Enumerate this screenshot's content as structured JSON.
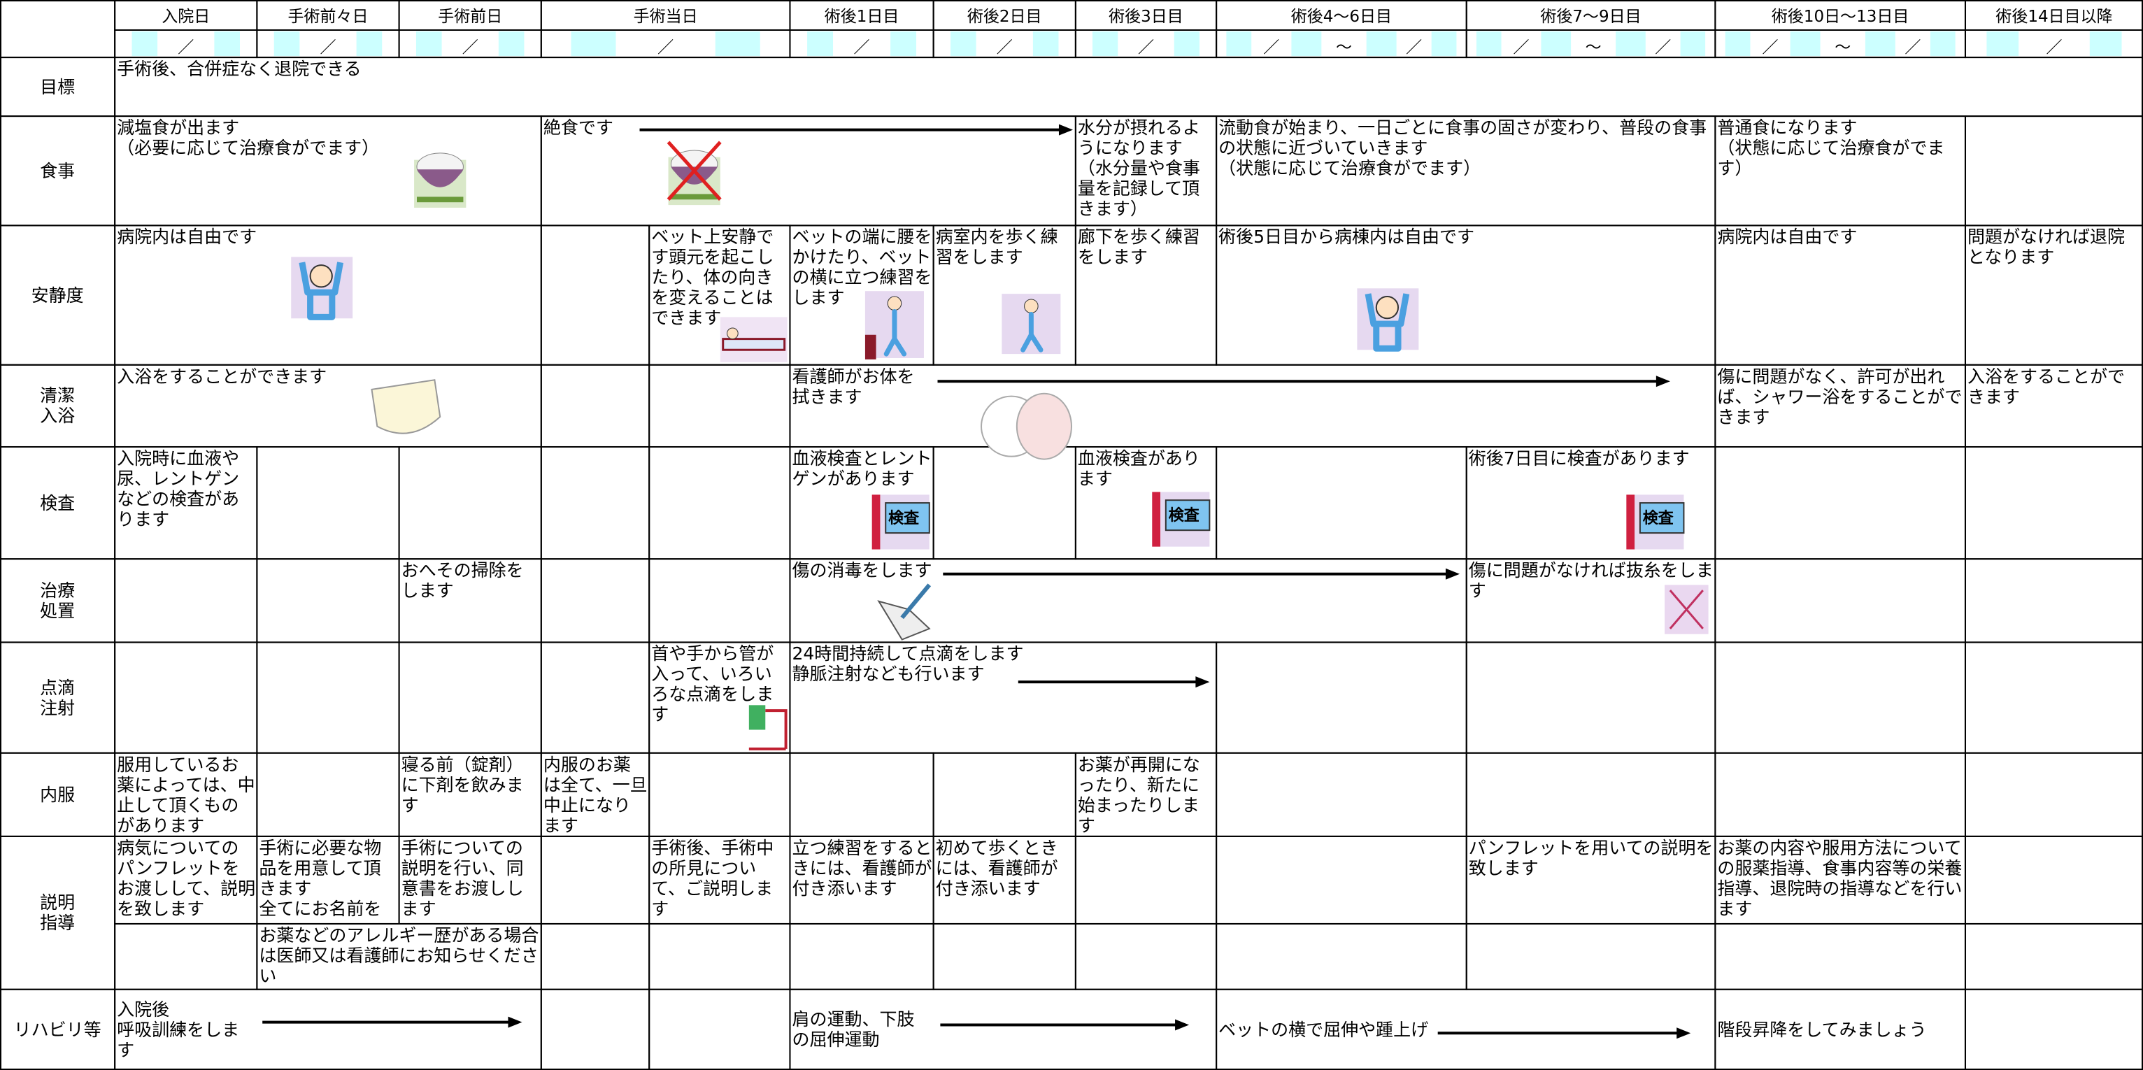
{
  "header": {
    "columns": [
      "入院日",
      "手術前々日",
      "手術前日",
      "手術当日",
      "術後1日目",
      "術後2日目",
      "術後3日目",
      "術後4〜6日目",
      "術後7〜9日目",
      "術後10日〜13日目",
      "術後14日目以降"
    ]
  },
  "date_row": [
    [
      "／"
    ],
    [
      "／"
    ],
    [
      "／"
    ],
    [
      "／"
    ],
    [
      "／"
    ],
    [
      "／"
    ],
    [
      "／"
    ],
    [
      "／",
      "〜",
      "／"
    ],
    [
      "／",
      "〜",
      "／"
    ],
    [
      "／",
      "〜",
      "／"
    ],
    [
      "／"
    ]
  ],
  "rows": [
    {
      "label": "目標",
      "cells": [
        "手術後、合併症なく退院できる"
      ]
    },
    {
      "label": "食事",
      "cells": [
        "減塩食が出ます\n（必要に応じて治療食がでます）",
        "絶食です",
        "水分が摂れるようになります\n（水分量や食事量を記録して頂きます）",
        "流動食が始まり、一日ごとに食事の固さが変わり、普段の食事の状態に近づいていきます\n（状態に応じて治療食がでます）",
        "普通食になります\n（状態に応じて治療食がでます）"
      ]
    },
    {
      "label": "安静度",
      "cells": [
        "病院内は自由です",
        "ベット上安静です頭元を起こしたり、体の向きを変えることはできます",
        "ベットの端に腰をかけたり、ベットの横に立つ練習をします",
        "病室内を歩く練習をします",
        "廊下を歩く練習をします",
        "術後5日目から病棟内は自由です",
        "病院内は自由です",
        "問題がなければ退院となります"
      ]
    },
    {
      "label": "清潔\n入浴",
      "cells": [
        "入浴をすることができます",
        "看護師がお体を拭きます",
        "傷に問題がなく、許可が出れば、シャワー浴をすることができます",
        "入浴をすることができます"
      ]
    },
    {
      "label": "検査",
      "cells": [
        "入院時に血液や尿、レントゲンなどの検査があります",
        "血液検査とレントゲンがあります",
        "血液検査があります",
        "術後7日目に検査があります"
      ]
    },
    {
      "label": "治療\n処置",
      "cells": [
        "おへその掃除をします",
        "傷の消毒をします",
        "傷に問題がなければ抜糸をします"
      ]
    },
    {
      "label": "点滴\n注射",
      "cells": [
        "首や手から管が入って、いろいろな点滴をします",
        "24時間持続して点滴をします\n静脈注射なども行います"
      ]
    },
    {
      "label": "内服",
      "cells": [
        "服用しているお薬によっては、中止して頂くものがあります",
        "寝る前（錠剤）に下剤を飲みます",
        "内服のお薬は全て、一旦中止になります",
        "お薬が再開になったり、新たに始まったりします"
      ]
    },
    {
      "label": "説明\n指導",
      "cells": [
        "病気についてのパンフレットをお渡しして、説明を致します",
        "手術に必要な物品を用意して頂きます\n全てにお名前を",
        "手術についての説明を行い、同意書をお渡しします",
        "手術後、手術中の所見について、ご説明します",
        "立つ練習をするときには、看護師が付き添います",
        "初めて歩くときには、看護師が付き添います",
        "パンフレットを用いての説明を致します",
        "お薬の内容や服用方法についての服薬指導、食事内容等の栄養指導、退院時の指導などを行います",
        "お薬などのアレルギー歴がある場合は医師又は看護師にお知らせください"
      ]
    },
    {
      "label": "リハビリ等",
      "cells": [
        "入院後\n呼吸訓練をします",
        "肩の運動、下肢の屈伸運動",
        "ベットの横で屈伸や踵上げ",
        "階段昇降をしてみましょう"
      ]
    }
  ],
  "icon_text": "検査"
}
